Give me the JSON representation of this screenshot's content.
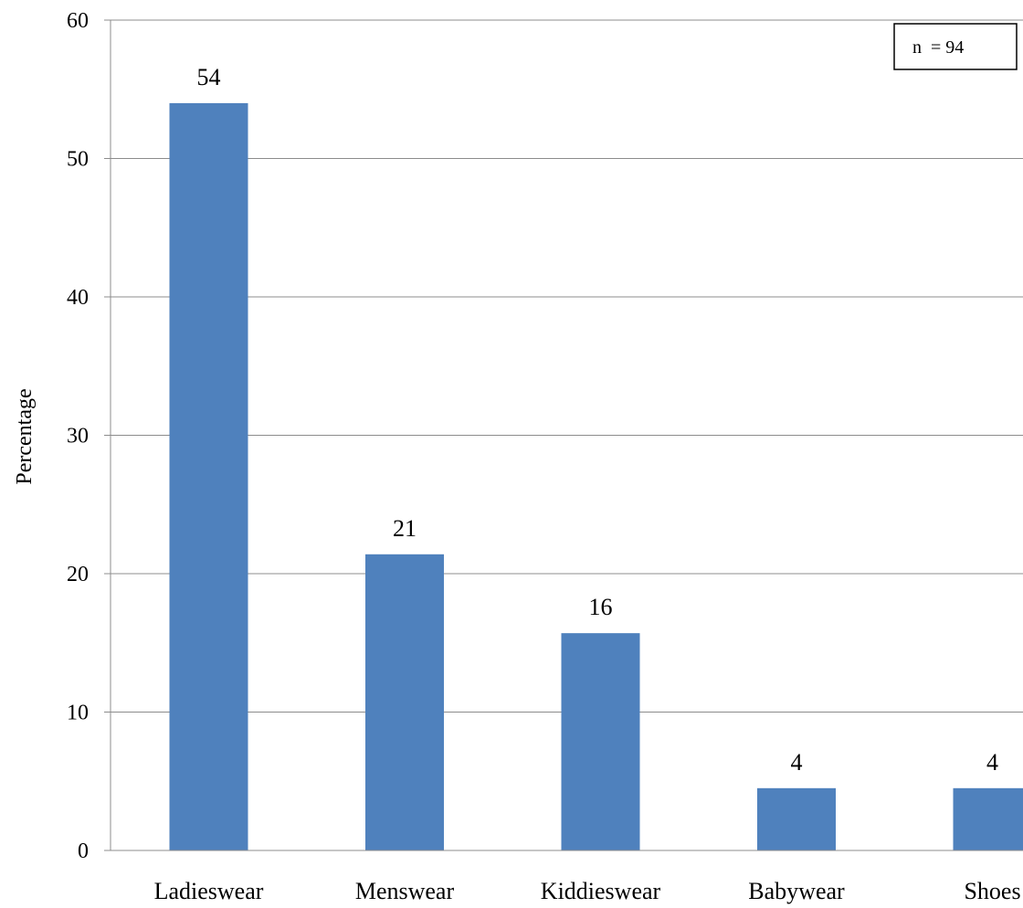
{
  "chart_data": {
    "type": "bar",
    "categories": [
      "Ladieswear",
      "Menswear",
      "Kiddieswear",
      "Babywear",
      "Shoes"
    ],
    "values": [
      54,
      21.4,
      15.7,
      4.5,
      4.5
    ],
    "data_labels": [
      "54",
      "21",
      "16",
      "4",
      "4"
    ],
    "ylabel": "Percentage",
    "ylim": [
      0,
      60
    ],
    "yticks": [
      0,
      10,
      20,
      30,
      40,
      50,
      60
    ],
    "grid": true,
    "annotation": "n  = 94",
    "bar_color": "#4f81bd",
    "grid_color": "#8c8c8c"
  }
}
